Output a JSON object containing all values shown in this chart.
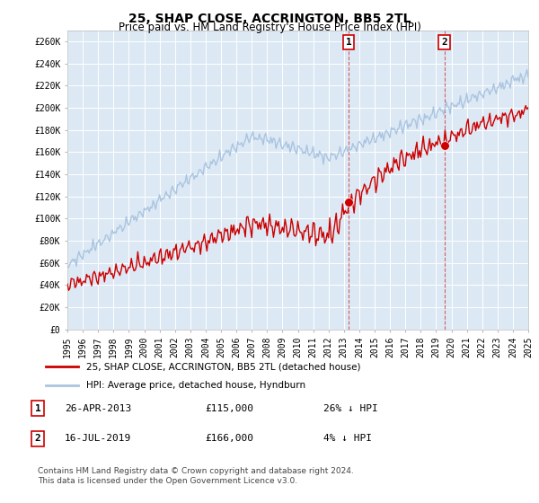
{
  "title": "25, SHAP CLOSE, ACCRINGTON, BB5 2TL",
  "subtitle": "Price paid vs. HM Land Registry's House Price Index (HPI)",
  "ylabel_ticks": [
    "£0",
    "£20K",
    "£40K",
    "£60K",
    "£80K",
    "£100K",
    "£120K",
    "£140K",
    "£160K",
    "£180K",
    "£200K",
    "£220K",
    "£240K",
    "£260K"
  ],
  "ylim": [
    0,
    270000
  ],
  "ytick_values": [
    0,
    20000,
    40000,
    60000,
    80000,
    100000,
    120000,
    140000,
    160000,
    180000,
    200000,
    220000,
    240000,
    260000
  ],
  "hpi_color": "#aac4e0",
  "price_color": "#cc0000",
  "marker_color": "#cc0000",
  "plot_bg_color": "#dce9f5",
  "legend_label_red": "25, SHAP CLOSE, ACCRINGTON, BB5 2TL (detached house)",
  "legend_label_blue": "HPI: Average price, detached house, Hyndburn",
  "sale1_label": "1",
  "sale1_date": "26-APR-2013",
  "sale1_price": "£115,000",
  "sale1_hpi": "26% ↓ HPI",
  "sale2_label": "2",
  "sale2_date": "16-JUL-2019",
  "sale2_price": "£166,000",
  "sale2_hpi": "4% ↓ HPI",
  "footnote1": "Contains HM Land Registry data © Crown copyright and database right 2024.",
  "footnote2": "This data is licensed under the Open Government Licence v3.0.",
  "sale1_year": 2013.32,
  "sale1_value": 115000,
  "sale2_year": 2019.54,
  "sale2_value": 166000,
  "xlim": [
    1995,
    2025
  ]
}
